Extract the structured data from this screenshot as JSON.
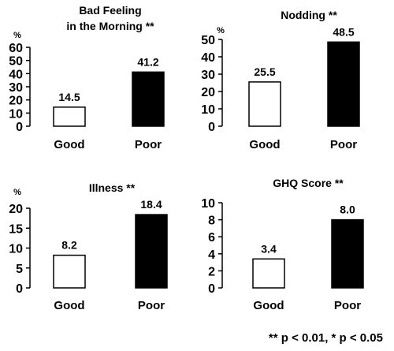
{
  "chart_data": [
    {
      "type": "bar",
      "title": "Bad Feeling in the Morning **",
      "title_lines": [
        "Bad Feeling",
        "in the Morning **"
      ],
      "ylabel": "%",
      "categories": [
        "Good",
        "Poor"
      ],
      "values": [
        14.5,
        41.2
      ],
      "value_labels": [
        "14.5",
        "41.2"
      ],
      "bar_colors": [
        "#ffffff",
        "#000000"
      ],
      "ylim": [
        0,
        60
      ],
      "yticks": [
        "0",
        "10",
        "20",
        "30",
        "40",
        "50",
        "60"
      ],
      "grid": false,
      "legend": "none"
    },
    {
      "type": "bar",
      "title": "Nodding **",
      "title_lines": [
        "Nodding **"
      ],
      "ylabel": "%",
      "categories": [
        "Good",
        "Poor"
      ],
      "values": [
        25.5,
        48.5
      ],
      "value_labels": [
        "25.5",
        "48.5"
      ],
      "bar_colors": [
        "#ffffff",
        "#000000"
      ],
      "ylim": [
        0,
        50
      ],
      "yticks": [
        "0",
        "10",
        "20",
        "30",
        "40",
        "50"
      ],
      "grid": false,
      "legend": "none"
    },
    {
      "type": "bar",
      "title": "Illness **",
      "title_lines": [
        "Illness **"
      ],
      "ylabel": "%",
      "categories": [
        "Good",
        "Poor"
      ],
      "values": [
        8.2,
        18.4
      ],
      "value_labels": [
        "8.2",
        "18.4"
      ],
      "bar_colors": [
        "#ffffff",
        "#000000"
      ],
      "ylim": [
        0,
        20
      ],
      "yticks": [
        "0",
        "5",
        "10",
        "15",
        "20"
      ],
      "grid": false,
      "legend": "none"
    },
    {
      "type": "bar",
      "title": "GHQ Score **",
      "title_lines": [
        "GHQ Score **"
      ],
      "ylabel": "",
      "categories": [
        "Good",
        "Poor"
      ],
      "values": [
        3.4,
        8.0
      ],
      "value_labels": [
        "3.4",
        "8.0"
      ],
      "bar_colors": [
        "#ffffff",
        "#000000"
      ],
      "ylim": [
        0,
        10
      ],
      "yticks": [
        "0",
        "2",
        "4",
        "6",
        "8",
        "10"
      ],
      "grid": false,
      "legend": "none"
    }
  ],
  "footnote": "** p < 0.01, * p < 0.05"
}
